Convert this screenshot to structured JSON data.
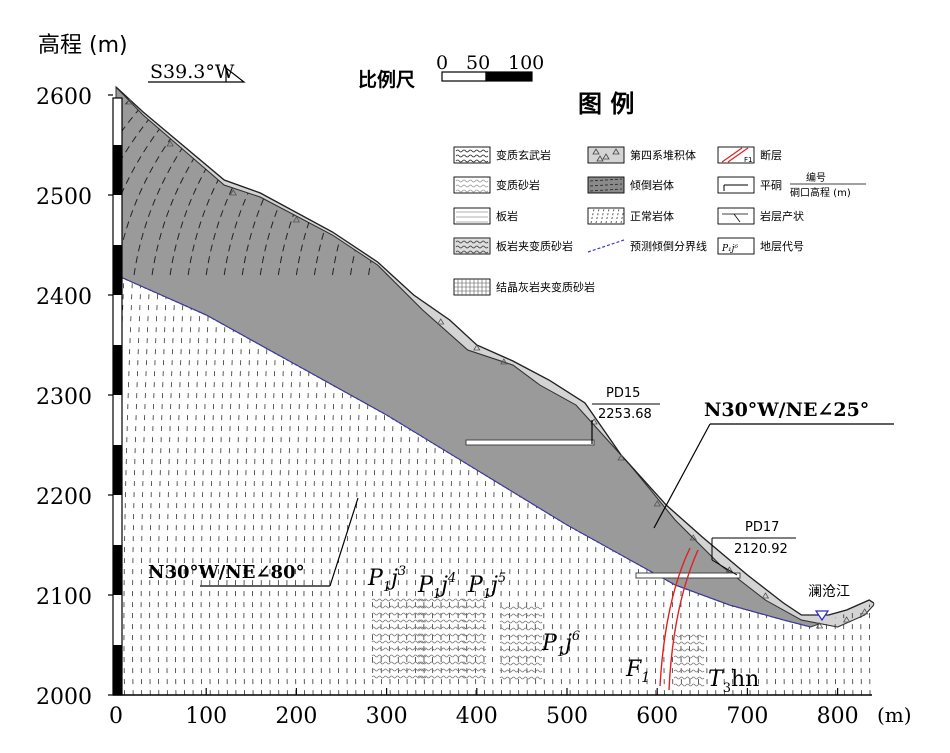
{
  "axes": {
    "ylabel": "高程 (m)",
    "xunit": "(m)",
    "yticks": [
      "2600",
      "2500",
      "2400",
      "2300",
      "2200",
      "2100",
      "2000"
    ],
    "xticks": [
      "0",
      "100",
      "200",
      "300",
      "400",
      "500",
      "600",
      "700",
      "800"
    ]
  },
  "direction": "S39.3°W",
  "scale": {
    "label": "比例尺",
    "marks": [
      "0",
      "50",
      "100"
    ]
  },
  "legend": {
    "title": "图 例",
    "items": [
      {
        "label": "变质玄武岩",
        "icon": "wavy-lines"
      },
      {
        "label": "第四系堆积体",
        "icon": "triangles"
      },
      {
        "label": "断层",
        "icon": "red-fault",
        "sub": "F1"
      },
      {
        "label": "变质砂岩",
        "icon": "light-wavy"
      },
      {
        "label": "倾倒岩体",
        "icon": "dark-dashed"
      },
      {
        "label": "平硐",
        "icon": "adit",
        "fraction": {
          "top": "编号",
          "bottom": "硐口高程 (m)"
        }
      },
      {
        "label": "板岩",
        "icon": "plain-lines"
      },
      {
        "label": "正常岩体",
        "icon": "steep-dashes"
      },
      {
        "label": "岩层产状",
        "icon": "attitude"
      },
      {
        "label": "板岩夹变质砂岩",
        "icon": "mixed-lines"
      },
      {
        "label": "预测倾倒分界线",
        "icon": "blue-dashed"
      },
      {
        "label": "地层代号",
        "icon": "stratum-code",
        "sub": "P1j6"
      },
      {
        "label": "结晶灰岩夹变质砂岩",
        "icon": "grid"
      }
    ]
  },
  "adits": [
    {
      "id": "PD15",
      "elevation": "2253.68"
    },
    {
      "id": "PD17",
      "elevation": "2120.92"
    }
  ],
  "attitudes": [
    {
      "text": "N30°W/NE∠25°"
    },
    {
      "text": "N30°W/NE∠80°"
    }
  ],
  "river": "澜沧江",
  "strata": [
    "P1j3",
    "P1j4",
    "P1j5",
    "P1j6"
  ],
  "fault": "F1",
  "formation": "T3hn",
  "colors": {
    "toppled": "#9a9a9a",
    "quaternary": "#d4d4d4",
    "fault": "#e02020",
    "boundary": "#3a3acc"
  }
}
